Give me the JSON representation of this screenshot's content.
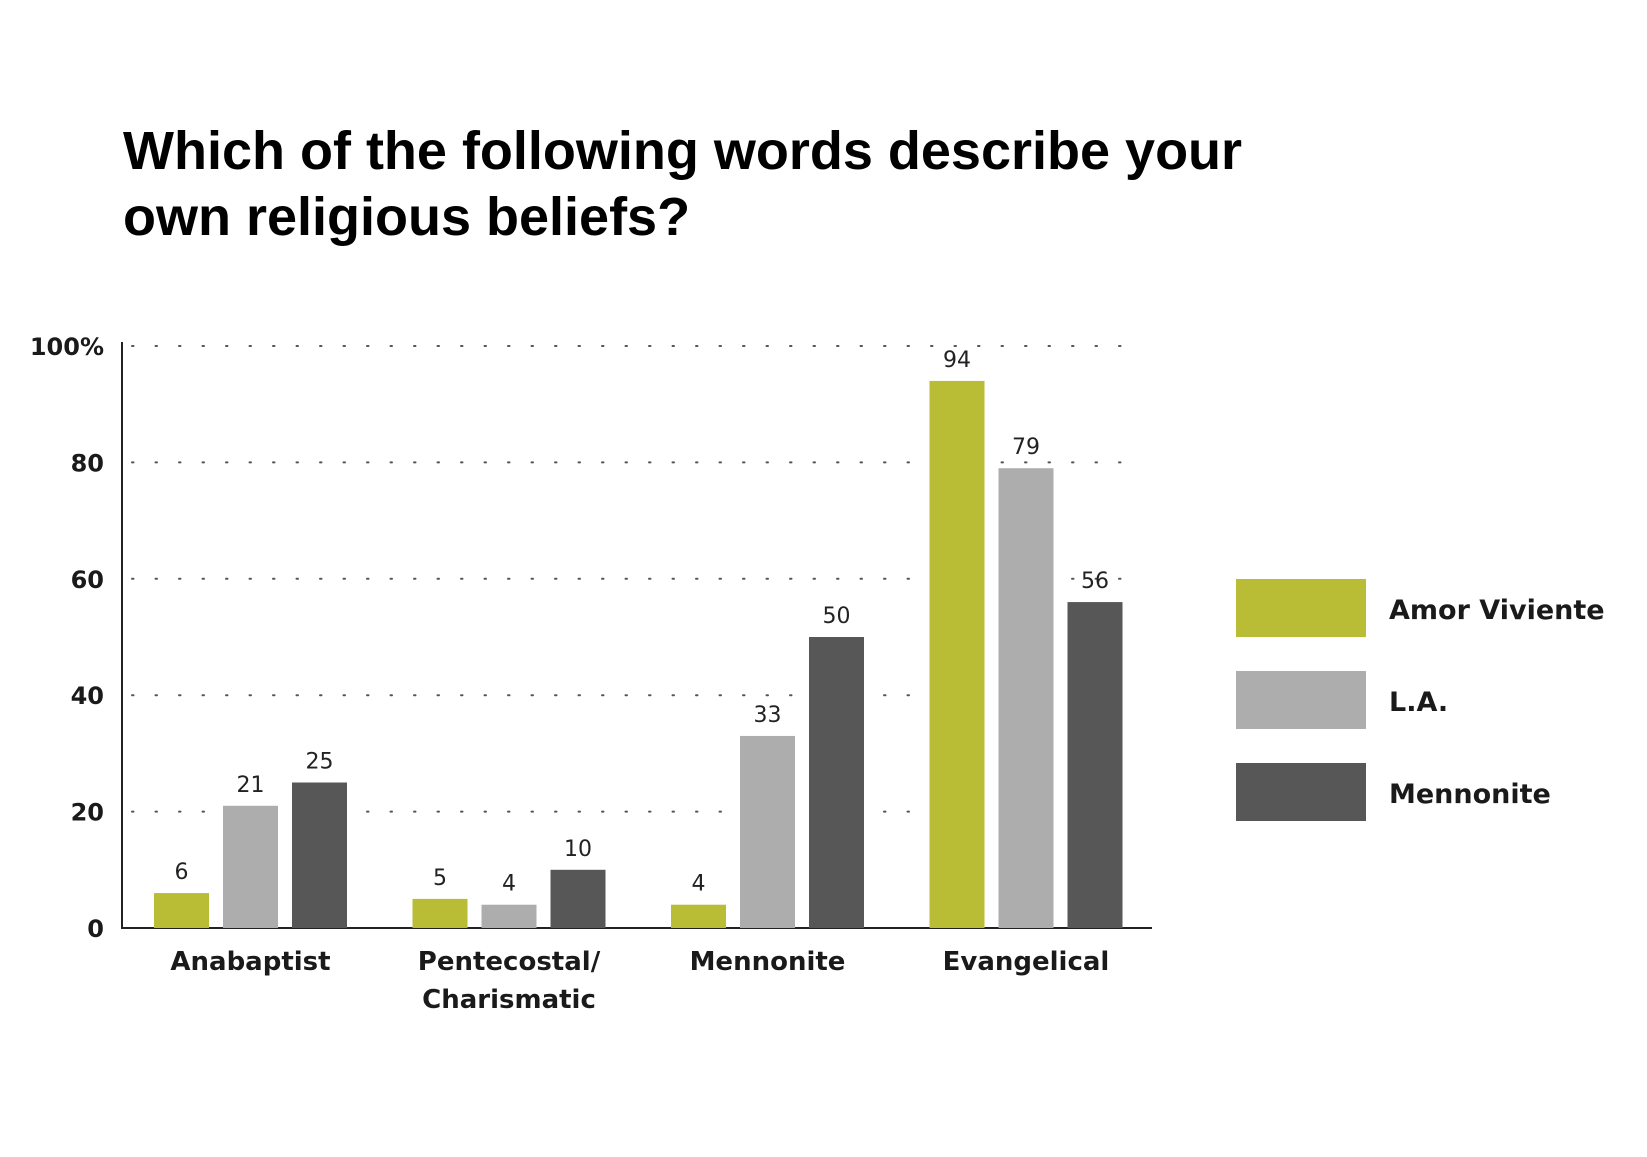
{
  "chart_data": {
    "type": "bar",
    "title_lines": [
      "Which of the following words describe your",
      "own religious beliefs?"
    ],
    "categories": [
      [
        "Anabaptist"
      ],
      [
        "Pentecostal/",
        "Charismatic"
      ],
      [
        "Mennonite"
      ],
      [
        "Evangelical"
      ]
    ],
    "series": [
      {
        "name": "Amor Viviente",
        "color": "#b8bd35",
        "values": [
          6,
          5,
          4,
          94
        ]
      },
      {
        "name": "L.A.",
        "color": "#adadad",
        "values": [
          21,
          4,
          33,
          79
        ]
      },
      {
        "name": "Mennonite",
        "color": "#575757",
        "values": [
          25,
          10,
          50,
          56
        ]
      }
    ],
    "ylim": [
      0,
      100
    ],
    "yticks": [
      {
        "value": 0,
        "label": "0"
      },
      {
        "value": 20,
        "label": "20"
      },
      {
        "value": 40,
        "label": "40"
      },
      {
        "value": 60,
        "label": "60"
      },
      {
        "value": 80,
        "label": "80"
      },
      {
        "value": 100,
        "label": "100%"
      }
    ],
    "grid": "dotted horizontal",
    "legend_position": "right"
  }
}
